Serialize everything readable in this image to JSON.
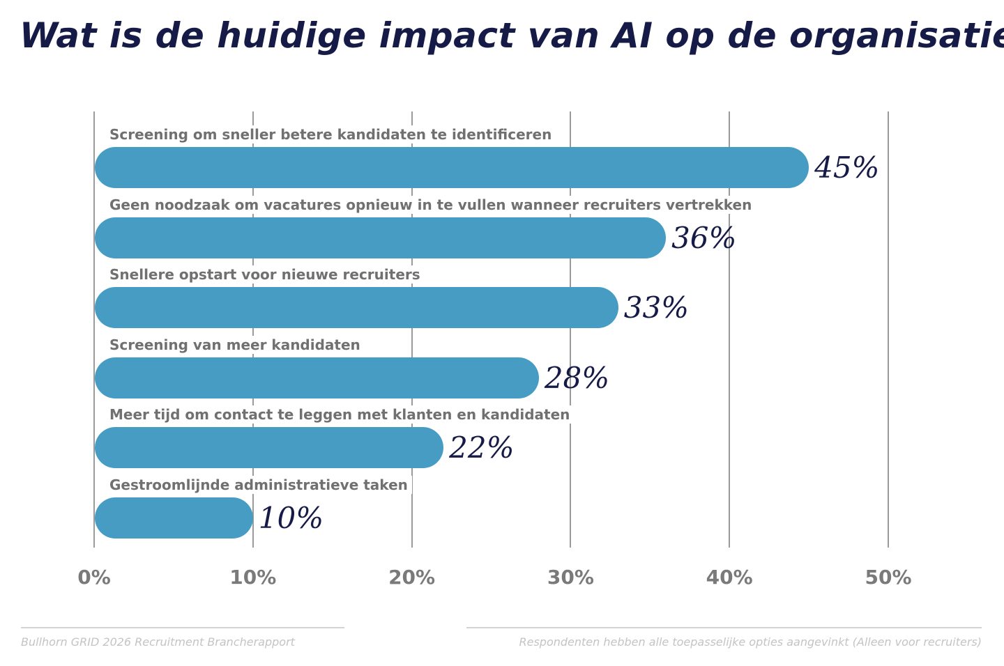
{
  "chart_data": {
    "type": "bar",
    "orientation": "horizontal",
    "title": "Wat is de huidige impact van AI op de organisatie?",
    "categories": [
      "Screening om sneller betere kandidaten te identificeren",
      "Geen noodzaak om vacatures opnieuw in te vullen wanneer recruiters vertrekken",
      "Snellere opstart voor nieuwe recruiters",
      "Screening van meer kandidaten",
      "Meer tijd om contact te leggen met klanten en kandidaten",
      "Gestroomlijnde administratieve taken"
    ],
    "values": [
      45,
      36,
      33,
      28,
      22,
      10
    ],
    "value_labels": [
      "45%",
      "36%",
      "33%",
      "28%",
      "22%",
      "10%"
    ],
    "xlim": [
      0,
      50
    ],
    "xticks": [
      0,
      10,
      20,
      30,
      40,
      50
    ],
    "xtick_labels": [
      "0%",
      "10%",
      "20%",
      "30%",
      "40%",
      "50%"
    ],
    "grid": true,
    "bar_color": "#479cc4"
  },
  "footer": {
    "source": "Bullhorn GRID 2026 Recruitment Brancherapport",
    "note": "Respondenten hebben alle toepasselijke opties aangevinkt (Alleen voor recruiters)"
  }
}
